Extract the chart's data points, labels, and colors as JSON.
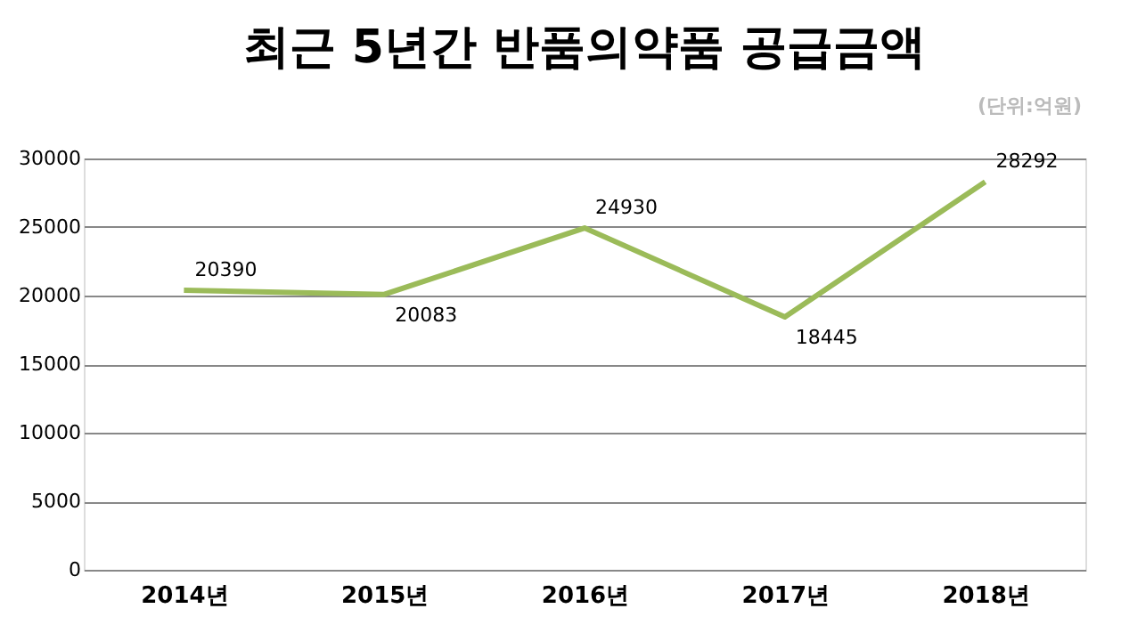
{
  "chart_data": {
    "type": "line",
    "title": "최근 5년간 반품의약품 공급금액",
    "annotations": [
      "(단위:억원)"
    ],
    "categories": [
      "2014년",
      "2015년",
      "2016년",
      "2017년",
      "2018년"
    ],
    "series": [
      {
        "color": "#9bbb59",
        "values": [
          20390,
          20083,
          24930,
          18445,
          28292
        ]
      }
    ],
    "ylim": [
      0,
      30000
    ],
    "yticks": [
      0,
      5000,
      10000,
      15000,
      20000,
      25000,
      30000
    ],
    "grid": "y",
    "marker": "none",
    "line_style": "solid",
    "data_labels": true
  }
}
